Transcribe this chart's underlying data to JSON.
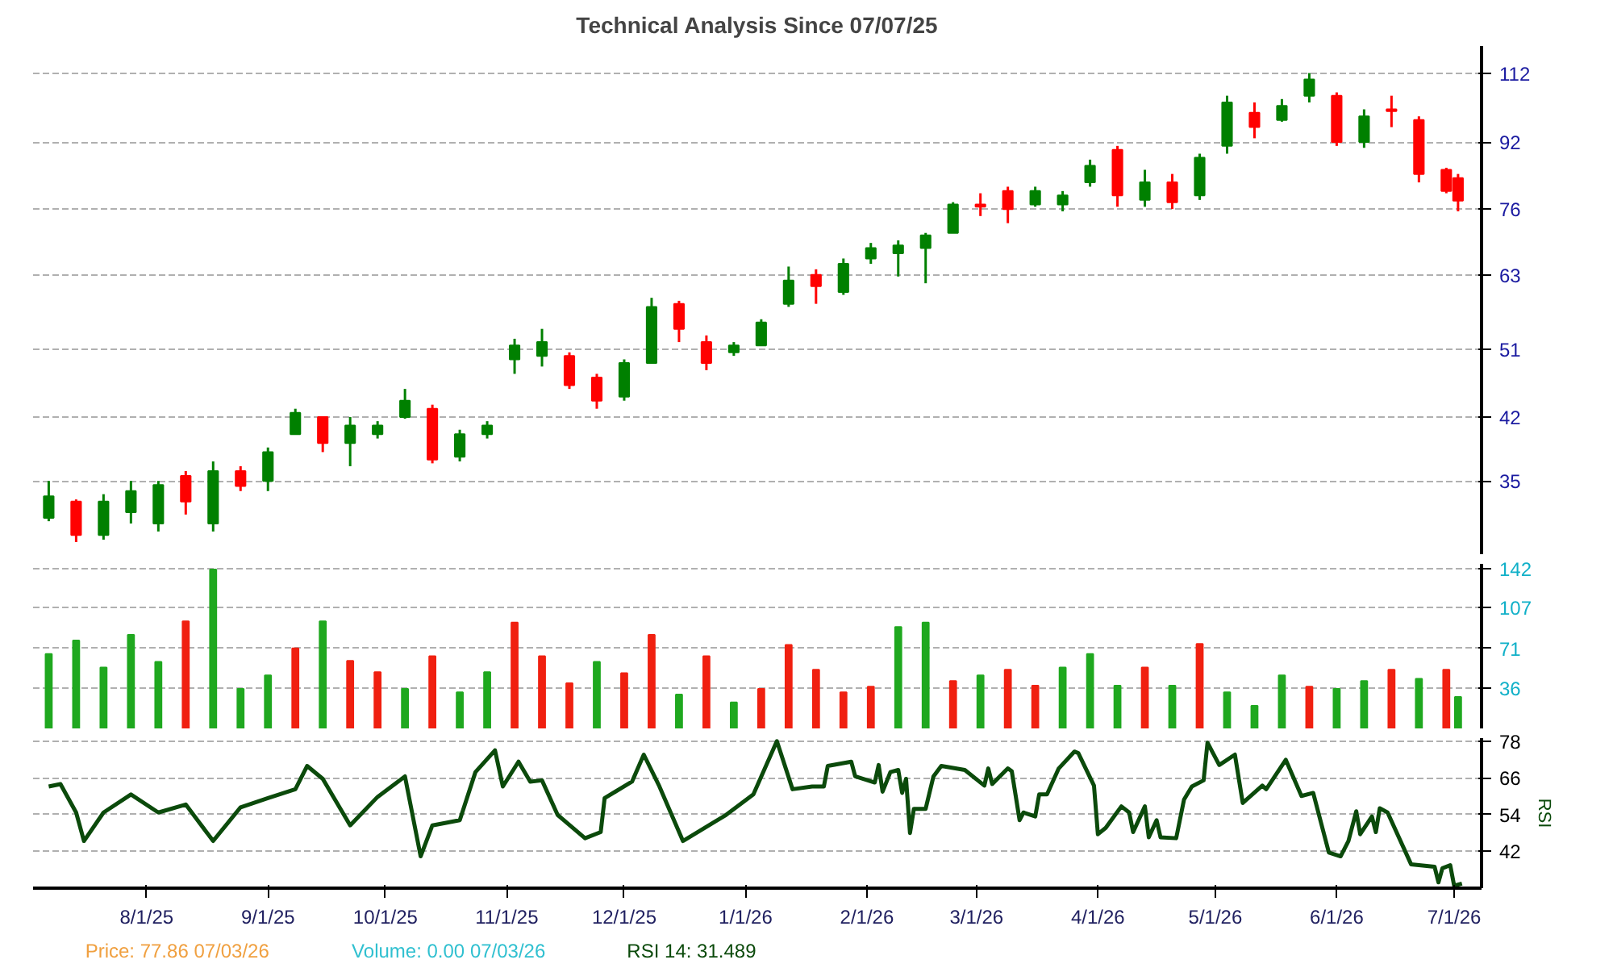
{
  "chart_data": [
    {
      "type": "candlestick",
      "title": "Technical Analysis Since 07/07/25",
      "x": [
        "2025-07-07",
        "2025-07-14",
        "2025-07-21",
        "2025-07-28",
        "2025-08-04",
        "2025-08-11",
        "2025-08-18",
        "2025-08-25",
        "2025-09-01",
        "2025-09-08",
        "2025-09-15",
        "2025-09-22",
        "2025-09-29",
        "2025-10-06",
        "2025-10-13",
        "2025-10-20",
        "2025-10-27",
        "2025-11-03",
        "2025-11-10",
        "2025-11-17",
        "2025-11-24",
        "2025-12-01",
        "2025-12-08",
        "2025-12-15",
        "2025-12-22",
        "2025-12-29",
        "2026-01-05",
        "2026-01-12",
        "2026-01-19",
        "2026-01-26",
        "2026-02-02",
        "2026-02-09",
        "2026-02-16",
        "2026-02-23",
        "2026-03-02",
        "2026-03-09",
        "2026-03-16",
        "2026-03-23",
        "2026-03-30",
        "2026-04-06",
        "2026-04-13",
        "2026-04-20",
        "2026-04-27",
        "2026-05-04",
        "2026-05-11",
        "2026-05-18",
        "2026-05-25",
        "2026-06-01",
        "2026-06-08",
        "2026-06-15",
        "2026-06-22",
        "2026-06-29",
        "2026-07-02"
      ],
      "ohlc": [
        [
          31.5,
          35,
          31.2,
          33.5
        ],
        [
          33,
          33.2,
          29.4,
          30
        ],
        [
          30,
          33.7,
          29.6,
          33
        ],
        [
          32,
          35,
          31,
          34
        ],
        [
          31,
          35,
          30.3,
          34.6
        ],
        [
          35.5,
          36,
          31.8,
          33
        ],
        [
          31,
          37,
          30.3,
          36
        ],
        [
          36,
          36.5,
          34,
          34.5
        ],
        [
          35,
          38.5,
          34,
          38
        ],
        [
          40,
          43,
          40,
          42.5
        ],
        [
          42,
          42,
          38,
          39
        ],
        [
          39,
          42,
          36.5,
          41
        ],
        [
          40,
          41.5,
          39.5,
          41
        ],
        [
          42,
          45.5,
          41.8,
          44
        ],
        [
          43,
          43.5,
          36.8,
          37.2
        ],
        [
          37.5,
          40.5,
          37,
          40
        ],
        [
          40,
          41.5,
          39.5,
          41
        ],
        [
          49.5,
          52.5,
          47.5,
          51.5
        ],
        [
          50,
          54,
          48.5,
          52
        ],
        [
          50,
          50.5,
          45.5,
          46
        ],
        [
          47,
          47.5,
          43,
          44
        ],
        [
          44.5,
          49.5,
          44,
          49
        ],
        [
          49,
          59,
          49,
          57.5
        ],
        [
          58,
          58.5,
          52,
          54
        ],
        [
          52,
          53,
          48,
          49
        ],
        [
          50.5,
          52,
          50,
          51.5
        ],
        [
          51.5,
          55.5,
          51.5,
          55
        ],
        [
          58,
          64.5,
          57.5,
          62
        ],
        [
          63,
          64,
          58,
          61
        ],
        [
          60,
          66,
          59.5,
          65
        ],
        [
          66,
          69,
          65,
          68
        ],
        [
          67,
          69.5,
          62.7,
          68.5
        ],
        [
          68,
          71,
          61.5,
          70.5
        ],
        [
          71,
          77.5,
          71,
          77
        ],
        [
          77,
          79.5,
          74.5,
          76.5
        ],
        [
          80,
          81,
          73,
          76
        ],
        [
          77,
          81,
          76.5,
          80
        ],
        [
          77,
          80,
          75.5,
          79
        ],
        [
          82,
          87.5,
          81,
          86
        ],
        [
          90,
          91,
          76.5,
          79
        ],
        [
          78,
          85,
          76.5,
          82
        ],
        [
          82,
          84,
          76,
          77.5
        ],
        [
          79,
          89,
          78,
          88
        ],
        [
          91,
          105,
          89,
          103
        ],
        [
          100,
          103,
          93,
          96
        ],
        [
          98,
          104,
          97.5,
          102
        ],
        [
          105,
          112,
          103,
          110
        ],
        [
          105,
          106,
          91,
          92
        ],
        [
          92,
          101,
          90.5,
          99
        ],
        [
          101,
          105,
          96,
          100.5
        ],
        [
          98,
          99,
          82,
          84
        ],
        [
          85,
          85.5,
          79.5,
          80
        ],
        [
          83,
          84,
          75.5,
          77.86
        ]
      ],
      "colors": [
        "#008000",
        "#ff0000",
        "#008000",
        "#008000",
        "#008000",
        "#ff0000",
        "#008000",
        "#ff0000",
        "#008000",
        "#008000",
        "#ff0000",
        "#008000",
        "#008000",
        "#008000",
        "#ff0000",
        "#008000",
        "#008000",
        "#008000",
        "#008000",
        "#ff0000",
        "#ff0000",
        "#008000",
        "#008000",
        "#ff0000",
        "#ff0000",
        "#008000",
        "#008000",
        "#008000",
        "#ff0000",
        "#008000",
        "#008000",
        "#008000",
        "#008000",
        "#008000",
        "#ff0000",
        "#ff0000",
        "#008000",
        "#008000",
        "#008000",
        "#ff0000",
        "#008000",
        "#ff0000",
        "#008000",
        "#008000",
        "#ff0000",
        "#008000",
        "#008000",
        "#ff0000",
        "#008000",
        "#ff0000",
        "#ff0000",
        "#ff0000",
        "#ff0000"
      ],
      "log": "y",
      "xlim": [
        "2025-07-03",
        "2026-07-08"
      ],
      "ylim": [
        28.4,
        121
      ],
      "yticks": [
        35,
        42,
        51,
        63,
        76,
        92,
        112
      ],
      "tick_labels": "y",
      "grid": "y"
    },
    {
      "type": "bar",
      "x": [
        "2025-07-07",
        "2025-07-14",
        "2025-07-21",
        "2025-07-28",
        "2025-08-04",
        "2025-08-11",
        "2025-08-18",
        "2025-08-25",
        "2025-09-01",
        "2025-09-08",
        "2025-09-15",
        "2025-09-22",
        "2025-09-29",
        "2025-10-06",
        "2025-10-13",
        "2025-10-20",
        "2025-10-27",
        "2025-11-03",
        "2025-11-10",
        "2025-11-17",
        "2025-11-24",
        "2025-12-01",
        "2025-12-08",
        "2025-12-15",
        "2025-12-22",
        "2025-12-29",
        "2026-01-05",
        "2026-01-12",
        "2026-01-19",
        "2026-01-26",
        "2026-02-02",
        "2026-02-09",
        "2026-02-16",
        "2026-02-23",
        "2026-03-02",
        "2026-03-09",
        "2026-03-16",
        "2026-03-23",
        "2026-03-30",
        "2026-04-06",
        "2026-04-13",
        "2026-04-20",
        "2026-04-27",
        "2026-05-04",
        "2026-05-11",
        "2026-05-18",
        "2026-05-25",
        "2026-06-01",
        "2026-06-08",
        "2026-06-15",
        "2026-06-22",
        "2026-06-29",
        "2026-07-02"
      ],
      "values": [
        66,
        78,
        54,
        83,
        59,
        95,
        141,
        35,
        47,
        71,
        95,
        60,
        50,
        35,
        64,
        32,
        50,
        94,
        64,
        40,
        59,
        49,
        83,
        30,
        64,
        23,
        35,
        74,
        52,
        32,
        37,
        90,
        94,
        42,
        47,
        52,
        38,
        54,
        66,
        38,
        54,
        38,
        75,
        32,
        20,
        47,
        37,
        35,
        42,
        52,
        44,
        52,
        28
      ],
      "colors": [
        "#1fa81f",
        "#1fa81f",
        "#1fa81f",
        "#1fa81f",
        "#1fa81f",
        "#f02010",
        "#1fa81f",
        "#1fa81f",
        "#1fa81f",
        "#f02010",
        "#1fa81f",
        "#f02010",
        "#f02010",
        "#1fa81f",
        "#f02010",
        "#1fa81f",
        "#1fa81f",
        "#f02010",
        "#f02010",
        "#f02010",
        "#1fa81f",
        "#f02010",
        "#f02010",
        "#1fa81f",
        "#f02010",
        "#1fa81f",
        "#f02010",
        "#f02010",
        "#f02010",
        "#f02010",
        "#f02010",
        "#1fa81f",
        "#1fa81f",
        "#f02010",
        "#1fa81f",
        "#f02010",
        "#f02010",
        "#1fa81f",
        "#1fa81f",
        "#1fa81f",
        "#f02010",
        "#1fa81f",
        "#f02010",
        "#1fa81f",
        "#1fa81f",
        "#1fa81f",
        "#f02010",
        "#1fa81f",
        "#1fa81f",
        "#f02010",
        "#1fa81f",
        "#f02010",
        "#1fa81f"
      ],
      "xlim": [
        "2025-07-03",
        "2026-07-08"
      ],
      "ylim": [
        0,
        146
      ],
      "yticks": [
        36,
        71,
        107,
        142
      ],
      "tick_labels": "y",
      "grid": "y"
    },
    {
      "type": "line",
      "ylabel": "RSI",
      "series": [
        {
          "color": "#0b4a0b",
          "x": [
            "2025-07-07",
            "2025-07-10",
            "2025-07-14",
            "2025-07-16",
            "2025-07-21",
            "2025-07-28",
            "2025-08-04",
            "2025-08-11",
            "2025-08-18",
            "2025-08-25",
            "2025-09-01",
            "2025-09-08",
            "2025-09-11",
            "2025-09-15",
            "2025-09-22",
            "2025-09-29",
            "2025-10-06",
            "2025-10-10",
            "2025-10-13",
            "2025-10-20",
            "2025-10-24",
            "2025-10-29",
            "2025-10-31",
            "2025-11-04",
            "2025-11-07",
            "2025-11-10",
            "2025-11-14",
            "2025-11-21",
            "2025-11-25",
            "2025-11-26",
            "2025-12-03",
            "2025-12-06",
            "2025-12-10",
            "2025-12-16",
            "2025-12-27",
            "2026-01-03",
            "2026-01-09",
            "2026-01-13",
            "2026-01-18",
            "2026-01-21",
            "2026-01-22",
            "2026-01-28",
            "2026-01-29",
            "2026-02-03",
            "2026-02-04",
            "2026-02-05",
            "2026-02-07",
            "2026-02-09",
            "2026-02-10",
            "2026-02-11",
            "2026-02-12",
            "2026-02-13",
            "2026-02-16",
            "2026-02-18",
            "2026-02-20",
            "2026-02-26",
            "2026-03-03",
            "2026-03-04",
            "2026-03-05",
            "2026-03-09",
            "2026-03-10",
            "2026-03-12",
            "2026-03-13",
            "2026-03-16",
            "2026-03-17",
            "2026-03-19",
            "2026-03-22",
            "2026-03-26",
            "2026-03-27",
            "2026-03-31",
            "2026-04-01",
            "2026-04-03",
            "2026-04-07",
            "2026-04-09",
            "2026-04-10",
            "2026-04-13",
            "2026-04-14",
            "2026-04-16",
            "2026-04-17",
            "2026-04-21",
            "2026-04-23",
            "2026-04-25",
            "2026-04-28",
            "2026-04-29",
            "2026-05-02",
            "2026-05-06",
            "2026-05-08",
            "2026-05-13",
            "2026-05-14",
            "2026-05-19",
            "2026-05-23",
            "2026-05-26",
            "2026-05-30",
            "2026-06-02",
            "2026-06-04",
            "2026-06-06",
            "2026-06-07",
            "2026-06-10",
            "2026-06-11",
            "2026-06-12",
            "2026-06-14",
            "2026-06-20",
            "2026-06-26",
            "2026-06-27",
            "2026-06-28",
            "2026-06-30",
            "2026-07-01",
            "2026-07-03"
          ],
          "values": [
            63.2,
            64,
            54.7,
            45.4,
            54.7,
            60.6,
            54.7,
            57.3,
            45.4,
            56.4,
            59.4,
            62.3,
            69.9,
            65.7,
            50.5,
            59.8,
            66.5,
            40.4,
            50.5,
            52.2,
            67.9,
            75,
            63.2,
            71.3,
            64.8,
            65.2,
            53.9,
            46.3,
            48.3,
            59.4,
            64.8,
            73.6,
            63.2,
            45.4,
            53.9,
            60.6,
            78,
            62.3,
            63.2,
            63.2,
            69.9,
            71.3,
            66.5,
            64.5,
            70.2,
            61.5,
            67.9,
            68.6,
            61.1,
            65.7,
            48,
            55.9,
            55.9,
            66.5,
            69.9,
            68.6,
            63.5,
            69.1,
            64,
            69.1,
            68.2,
            52.2,
            54.7,
            53.4,
            60.6,
            60.6,
            69.1,
            74.6,
            74.1,
            63.5,
            47.6,
            49.7,
            56.7,
            54.7,
            48.3,
            56.7,
            46.6,
            52.2,
            46.6,
            46.3,
            58.9,
            63.2,
            65.2,
            77.5,
            70.2,
            73.6,
            57.8,
            63.5,
            62.3,
            71.9,
            60.1,
            61.1,
            41.6,
            40.4,
            45.4,
            55.1,
            47.6,
            53.4,
            48.3,
            56.1,
            54.7,
            37.8,
            37,
            31.9,
            36.5,
            37.5,
            30.8,
            31.5
          ]
        }
      ],
      "xlim": [
        "2025-07-03",
        "2026-07-08"
      ],
      "ylim": [
        30,
        79
      ],
      "yticks": [
        42,
        54,
        66,
        78
      ],
      "xticks": [
        {
          "value": "2025-08-01",
          "label": "8/1/25"
        },
        {
          "value": "2025-09-01",
          "label": "9/1/25"
        },
        {
          "value": "2025-10-01",
          "label": "10/1/25"
        },
        {
          "value": "2025-11-01",
          "label": "11/1/25"
        },
        {
          "value": "2025-12-01",
          "label": "12/1/25"
        },
        {
          "value": "2026-01-01",
          "label": "1/1/26"
        },
        {
          "value": "2026-02-01",
          "label": "2/1/26"
        },
        {
          "value": "2026-03-01",
          "label": "3/1/26"
        },
        {
          "value": "2026-04-01",
          "label": "4/1/26"
        },
        {
          "value": "2026-05-01",
          "label": "5/1/26"
        },
        {
          "value": "2026-06-01",
          "label": "6/1/26"
        },
        {
          "value": "2026-07-01",
          "label": "7/1/26"
        }
      ],
      "grid": "y",
      "annotations": [
        "Price: 77.86  07/03/26",
        "Volume: 0.00  07/03/26",
        "RSI 14: 31.489"
      ]
    }
  ]
}
